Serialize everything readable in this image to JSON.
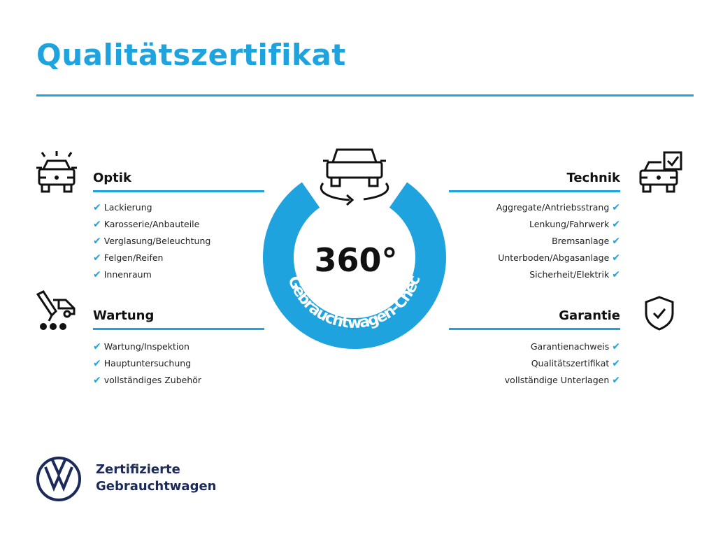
{
  "title": "Qualitätszertifikat",
  "badge": {
    "value": "360°",
    "ring_text": "Gebrauchtwagen-Check",
    "icon": "car-rotate-icon"
  },
  "sections": {
    "optik": {
      "title": "Optik",
      "icon": "car-lights-icon",
      "items": [
        "Lackierung",
        "Karosserie/Anbauteile",
        "Verglasung/Beleuchtung",
        "Felgen/Reifen",
        "Innenraum"
      ]
    },
    "wartung": {
      "title": "Wartung",
      "icon": "service-van-icon",
      "items": [
        "Wartung/Inspektion",
        "Hauptuntersuchung",
        "vollständiges Zubehör"
      ]
    },
    "technik": {
      "title": "Technik",
      "icon": "car-checkbox-icon",
      "items": [
        "Aggregate/Antriebsstrang",
        "Lenkung/Fahrwerk",
        "Bremsanlage",
        "Unterboden/Abgasanlage",
        "Sicherheit/Elektrik"
      ]
    },
    "garantie": {
      "title": "Garantie",
      "icon": "shield-check-icon",
      "items": [
        "Garantienachweis",
        "Qualitätszertifikat",
        "vollständige Unterlagen"
      ]
    }
  },
  "check_mark": "✔",
  "footer": {
    "line1": "Zertifizierte",
    "line2": "Gebrauchtwagen",
    "logo": "VW"
  },
  "colors": {
    "accent": "#1ea3de",
    "logo": "#1b2a5a"
  }
}
